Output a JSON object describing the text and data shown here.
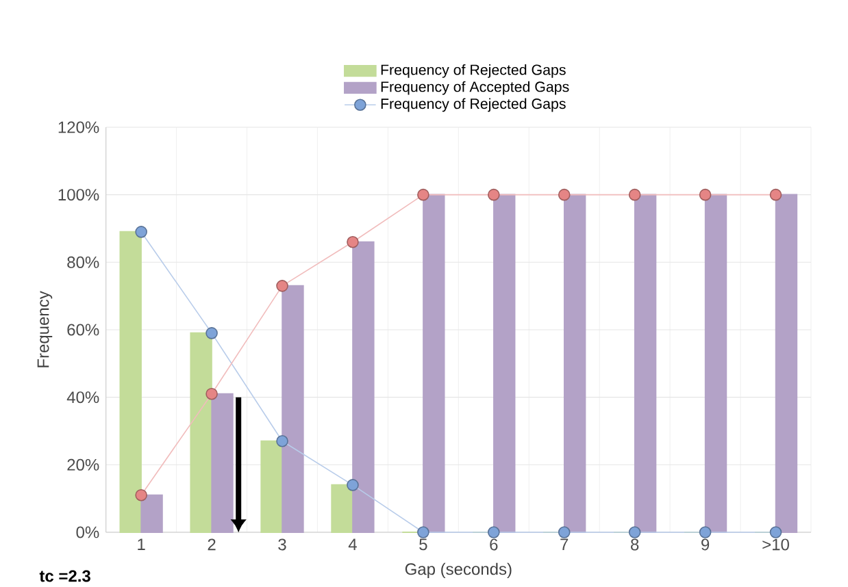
{
  "chart_data": {
    "type": "bar",
    "xlabel": "Gap (seconds)",
    "ylabel": "Frequency",
    "categories": [
      "1",
      "2",
      "3",
      "4",
      "5",
      "6",
      "7",
      "8",
      "9",
      ">10"
    ],
    "series": [
      {
        "name": "Frequency of Rejected Gaps",
        "color": "#c3dc99",
        "values": [
          89,
          59,
          27,
          14,
          0,
          0,
          0,
          0,
          0,
          0
        ]
      },
      {
        "name": "Frequency of Accepted Gaps",
        "color": "#b3a2c7",
        "values": [
          11,
          41,
          73,
          86,
          100,
          100,
          100,
          100,
          100,
          100
        ]
      },
      {
        "name": "Frequency of Rejected Gaps",
        "type": "line",
        "color": "#7ea3d8",
        "marker": "circle",
        "values": [
          89,
          59,
          27,
          14,
          0,
          0,
          0,
          0,
          0,
          0
        ]
      },
      {
        "type": "line",
        "color": "#e58585",
        "marker": "circle",
        "values": [
          11,
          41,
          73,
          86,
          100,
          100,
          100,
          100,
          100,
          100
        ]
      }
    ],
    "ylim": [
      0,
      120
    ],
    "yticks": [
      {
        "value": 0,
        "label": "0%"
      },
      {
        "value": 20,
        "label": "20%"
      },
      {
        "value": 40,
        "label": "40%"
      },
      {
        "value": 60,
        "label": "60%"
      },
      {
        "value": 80,
        "label": "80%"
      },
      {
        "value": 100,
        "label": "100%"
      },
      {
        "value": 120,
        "label": "120%"
      }
    ],
    "grid": true,
    "legend": "top",
    "annotations": [
      "tc =2.3"
    ]
  }
}
